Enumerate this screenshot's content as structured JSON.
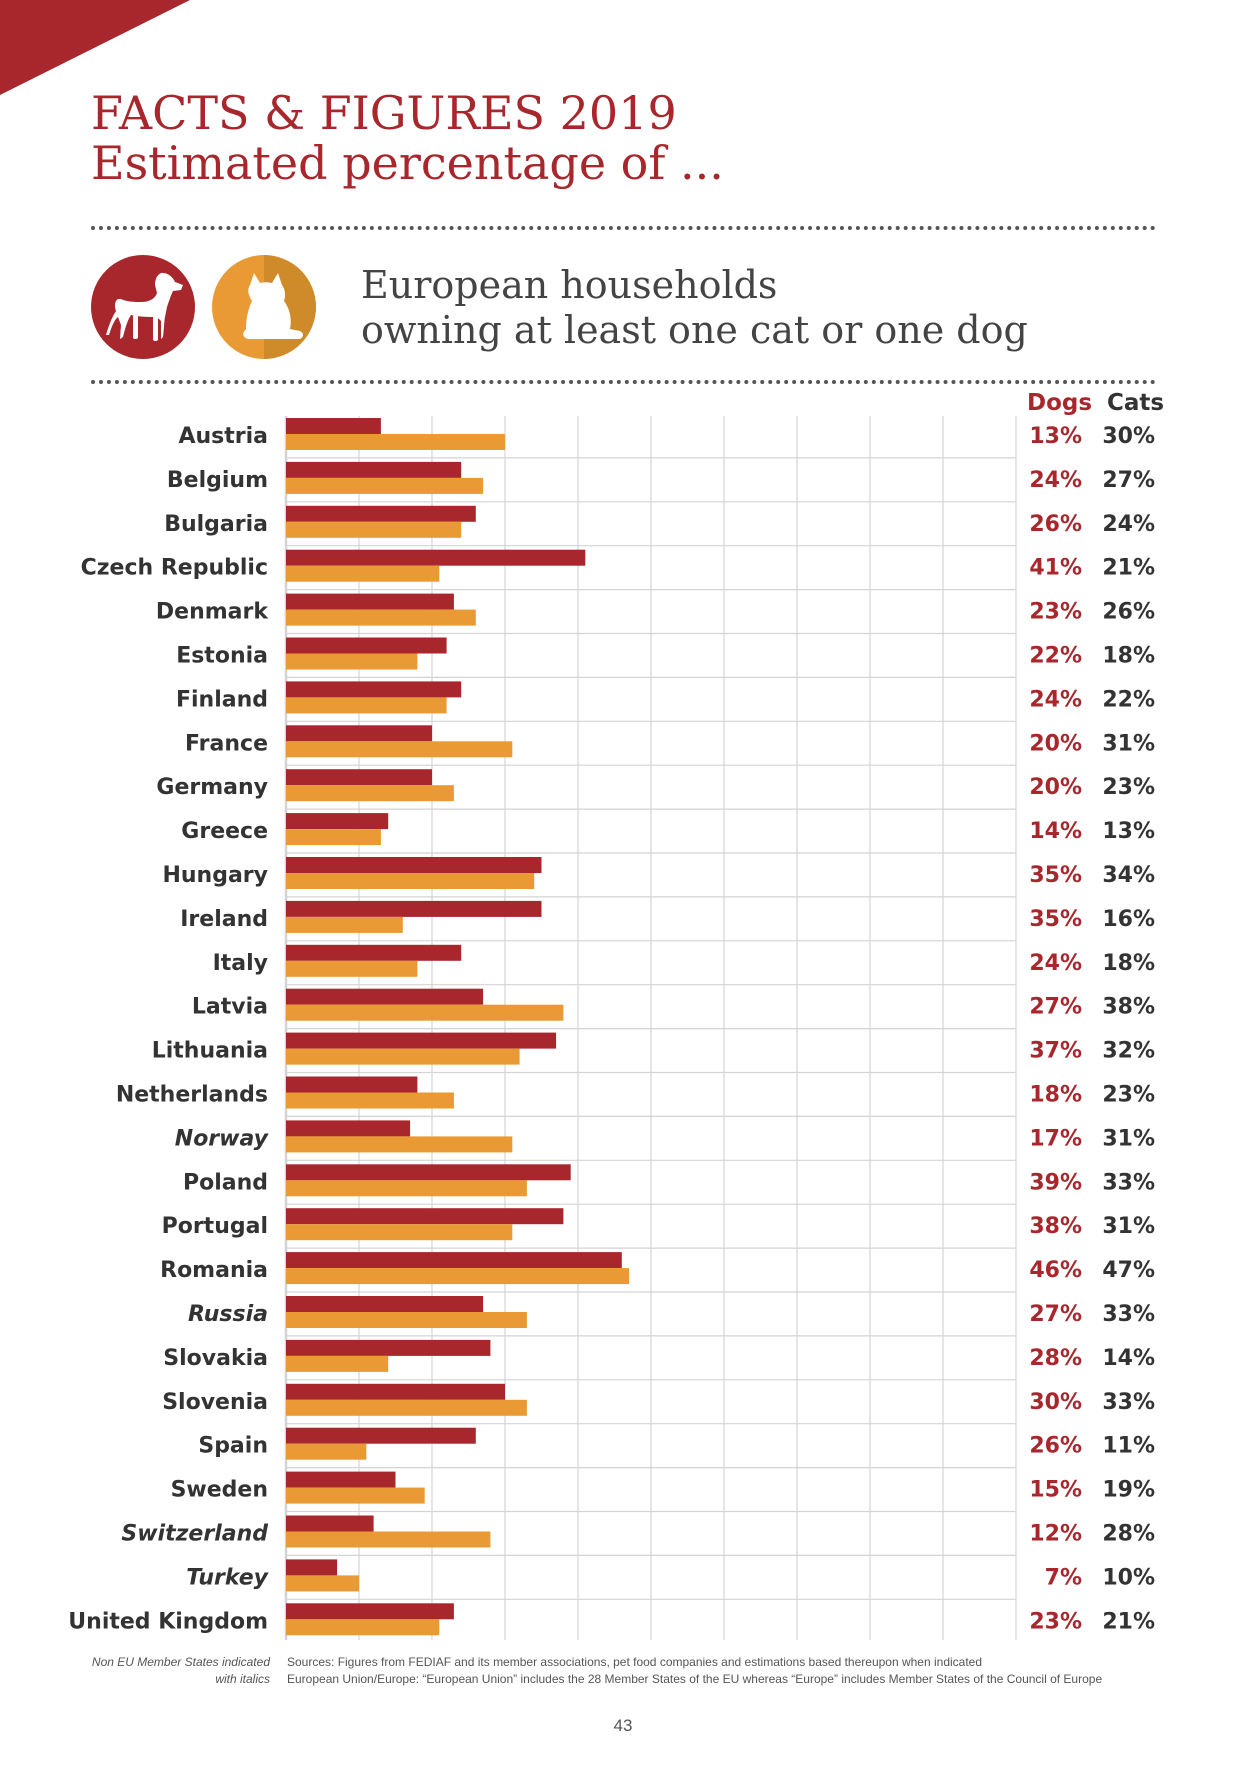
{
  "page": {
    "title_line1": "FACTS & FIGURES 2019",
    "title_line2": "Estimated percentage of ...",
    "subtitle_line1": "European households",
    "subtitle_line2": "owning at least one cat or one dog",
    "col_dogs": "Dogs",
    "col_cats": "Cats",
    "footnote_left_line1": "Non EU Member States indicated",
    "footnote_left_line2": "with italics",
    "sources_line1": "Sources: Figures from FEDIAF and its member associations, pet food companies and estimations based thereupon when indicated",
    "sources_line2": "European Union/Europe:  “European Union” includes the 28 Member States of the EU whereas “Europe” includes Member States of the Council of Europe",
    "page_number": "43"
  },
  "colors": {
    "dogs": "#a8272d",
    "cats": "#e99a34",
    "grid": "#d4d4d4",
    "label_text": "#333333"
  },
  "icons": {
    "dogs": "dog-icon",
    "cats": "cat-icon"
  },
  "chart_data": {
    "type": "bar",
    "orientation": "horizontal",
    "title": "European households owning at least one cat or one dog",
    "xlim": [
      0,
      100
    ],
    "grid": true,
    "categories": [
      "Austria",
      "Belgium",
      "Bulgaria",
      "Czech Republic",
      "Denmark",
      "Estonia",
      "Finland",
      "France",
      "Germany",
      "Greece",
      "Hungary",
      "Ireland",
      "Italy",
      "Latvia",
      "Lithuania",
      "Netherlands",
      "Norway",
      "Poland",
      "Portugal",
      "Romania",
      "Russia",
      "Slovakia",
      "Slovenia",
      "Spain",
      "Sweden",
      "Switzerland",
      "Turkey",
      "United Kingdom"
    ],
    "italic_categories": [
      "Norway",
      "Russia",
      "Switzerland",
      "Turkey"
    ],
    "series": [
      {
        "name": "Dogs",
        "values": [
          13,
          24,
          26,
          41,
          23,
          22,
          24,
          20,
          20,
          14,
          35,
          35,
          24,
          27,
          37,
          18,
          17,
          39,
          38,
          46,
          27,
          28,
          30,
          26,
          15,
          12,
          7,
          23
        ]
      },
      {
        "name": "Cats",
        "values": [
          30,
          27,
          24,
          21,
          26,
          18,
          22,
          31,
          23,
          13,
          34,
          16,
          18,
          38,
          32,
          23,
          31,
          33,
          31,
          47,
          33,
          14,
          33,
          11,
          19,
          28,
          10,
          21
        ]
      }
    ]
  }
}
